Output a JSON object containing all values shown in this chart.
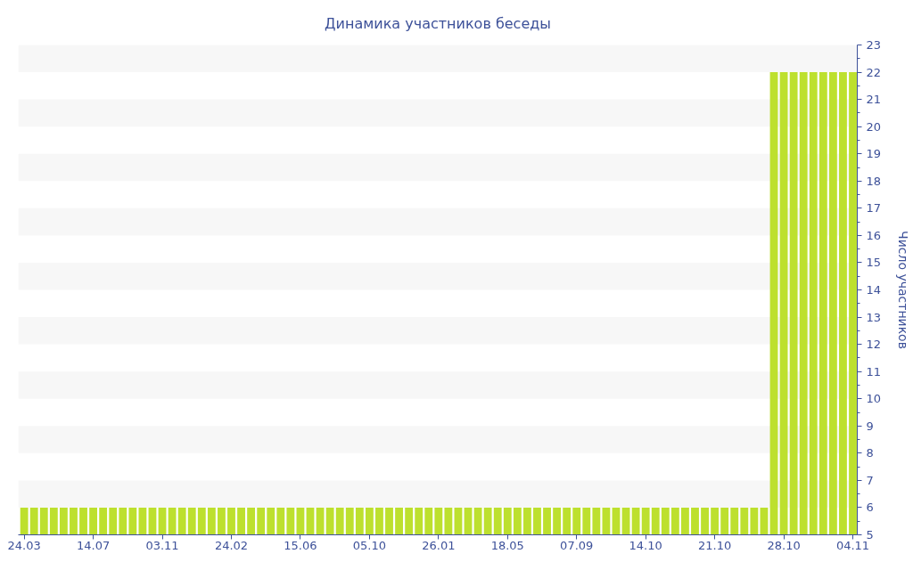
{
  "chart_data": {
    "type": "bar",
    "title": "Динамика участников беседы",
    "ylabel": "Число участников",
    "categories": [
      "24.03",
      null,
      null,
      null,
      null,
      null,
      null,
      "14.07",
      null,
      null,
      null,
      null,
      null,
      null,
      "03.11",
      null,
      null,
      null,
      null,
      null,
      null,
      "24.02",
      null,
      null,
      null,
      null,
      null,
      null,
      "15.06",
      null,
      null,
      null,
      null,
      null,
      null,
      "05.10",
      null,
      null,
      null,
      null,
      null,
      null,
      "26.01",
      null,
      null,
      null,
      null,
      null,
      null,
      "18.05",
      null,
      null,
      null,
      null,
      null,
      null,
      "07.09",
      null,
      null,
      null,
      null,
      null,
      null,
      "14.10",
      null,
      null,
      null,
      null,
      null,
      null,
      "21.10",
      null,
      null,
      null,
      null,
      null,
      null,
      "28.10",
      null,
      null,
      null,
      null,
      null,
      null,
      "04.11"
    ],
    "values": [
      6,
      6,
      6,
      6,
      6,
      6,
      6,
      6,
      6,
      6,
      6,
      6,
      6,
      6,
      6,
      6,
      6,
      6,
      6,
      6,
      6,
      6,
      6,
      6,
      6,
      6,
      6,
      6,
      6,
      6,
      6,
      6,
      6,
      6,
      6,
      6,
      6,
      6,
      6,
      6,
      6,
      6,
      6,
      6,
      6,
      6,
      6,
      6,
      6,
      6,
      6,
      6,
      6,
      6,
      6,
      6,
      6,
      6,
      6,
      6,
      6,
      6,
      6,
      6,
      6,
      6,
      6,
      6,
      6,
      6,
      6,
      6,
      6,
      6,
      6,
      6,
      22,
      22,
      22,
      22,
      22,
      22,
      22,
      22,
      22
    ],
    "color": "#bde02e",
    "ylim": [
      5,
      23
    ],
    "yticks": [
      5,
      6,
      7,
      8,
      9,
      10,
      11,
      12,
      13,
      14,
      15,
      16,
      17,
      18,
      19,
      20,
      21,
      22,
      23
    ],
    "bands": [
      {
        "axis": "y",
        "from": 6,
        "to": 7,
        "color": "#f7f7f7"
      },
      {
        "axis": "y",
        "from": 8,
        "to": 9,
        "color": "#f7f7f7"
      },
      {
        "axis": "y",
        "from": 10,
        "to": 11,
        "color": "#f7f7f7"
      },
      {
        "axis": "y",
        "from": 12,
        "to": 13,
        "color": "#f7f7f7"
      },
      {
        "axis": "y",
        "from": 14,
        "to": 15,
        "color": "#f7f7f7"
      },
      {
        "axis": "y",
        "from": 16,
        "to": 17,
        "color": "#f7f7f7"
      },
      {
        "axis": "y",
        "from": 18,
        "to": 19,
        "color": "#f7f7f7"
      },
      {
        "axis": "y",
        "from": 20,
        "to": 21,
        "color": "#f7f7f7"
      },
      {
        "axis": "y",
        "from": 22,
        "to": 23,
        "color": "#f7f7f7"
      }
    ]
  }
}
